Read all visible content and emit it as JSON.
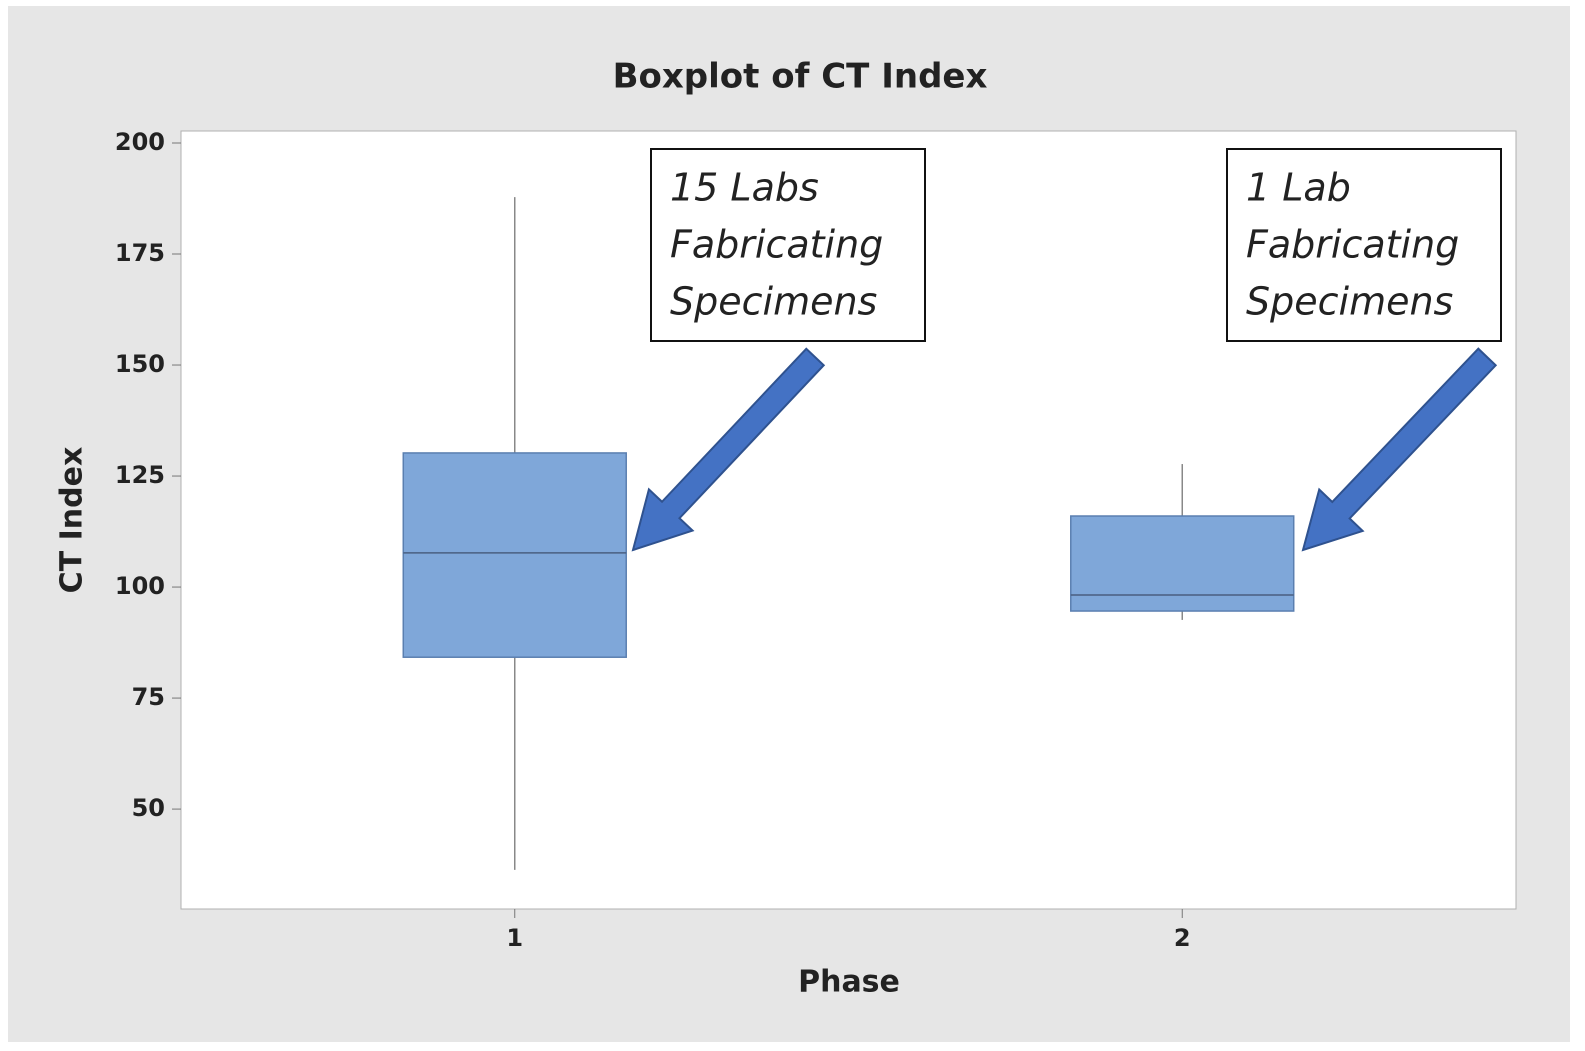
{
  "chart_data": {
    "type": "box",
    "title": "Boxplot of CT Index",
    "xlabel": "Phase",
    "ylabel": "CT Index",
    "categories": [
      "1",
      "2"
    ],
    "values": [
      {
        "min": 36.3,
        "q1": 84.2,
        "median": 107.7,
        "q3": 130.2,
        "max": 187.8
      },
      {
        "min": 92.6,
        "q1": 94.6,
        "median": 98.2,
        "q3": 116.0,
        "max": 127.7
      }
    ],
    "color": "#7fa7d9",
    "ylim": [
      27.5,
      202.7
    ],
    "yticks": [
      50,
      75,
      100,
      125,
      150,
      175,
      200
    ],
    "annotations": [
      {
        "lines": [
          "15 Labs",
          "Fabricating",
          "Specimens"
        ]
      },
      {
        "lines": [
          "1 Lab",
          "Fabricating",
          "Specimens"
        ]
      }
    ]
  }
}
